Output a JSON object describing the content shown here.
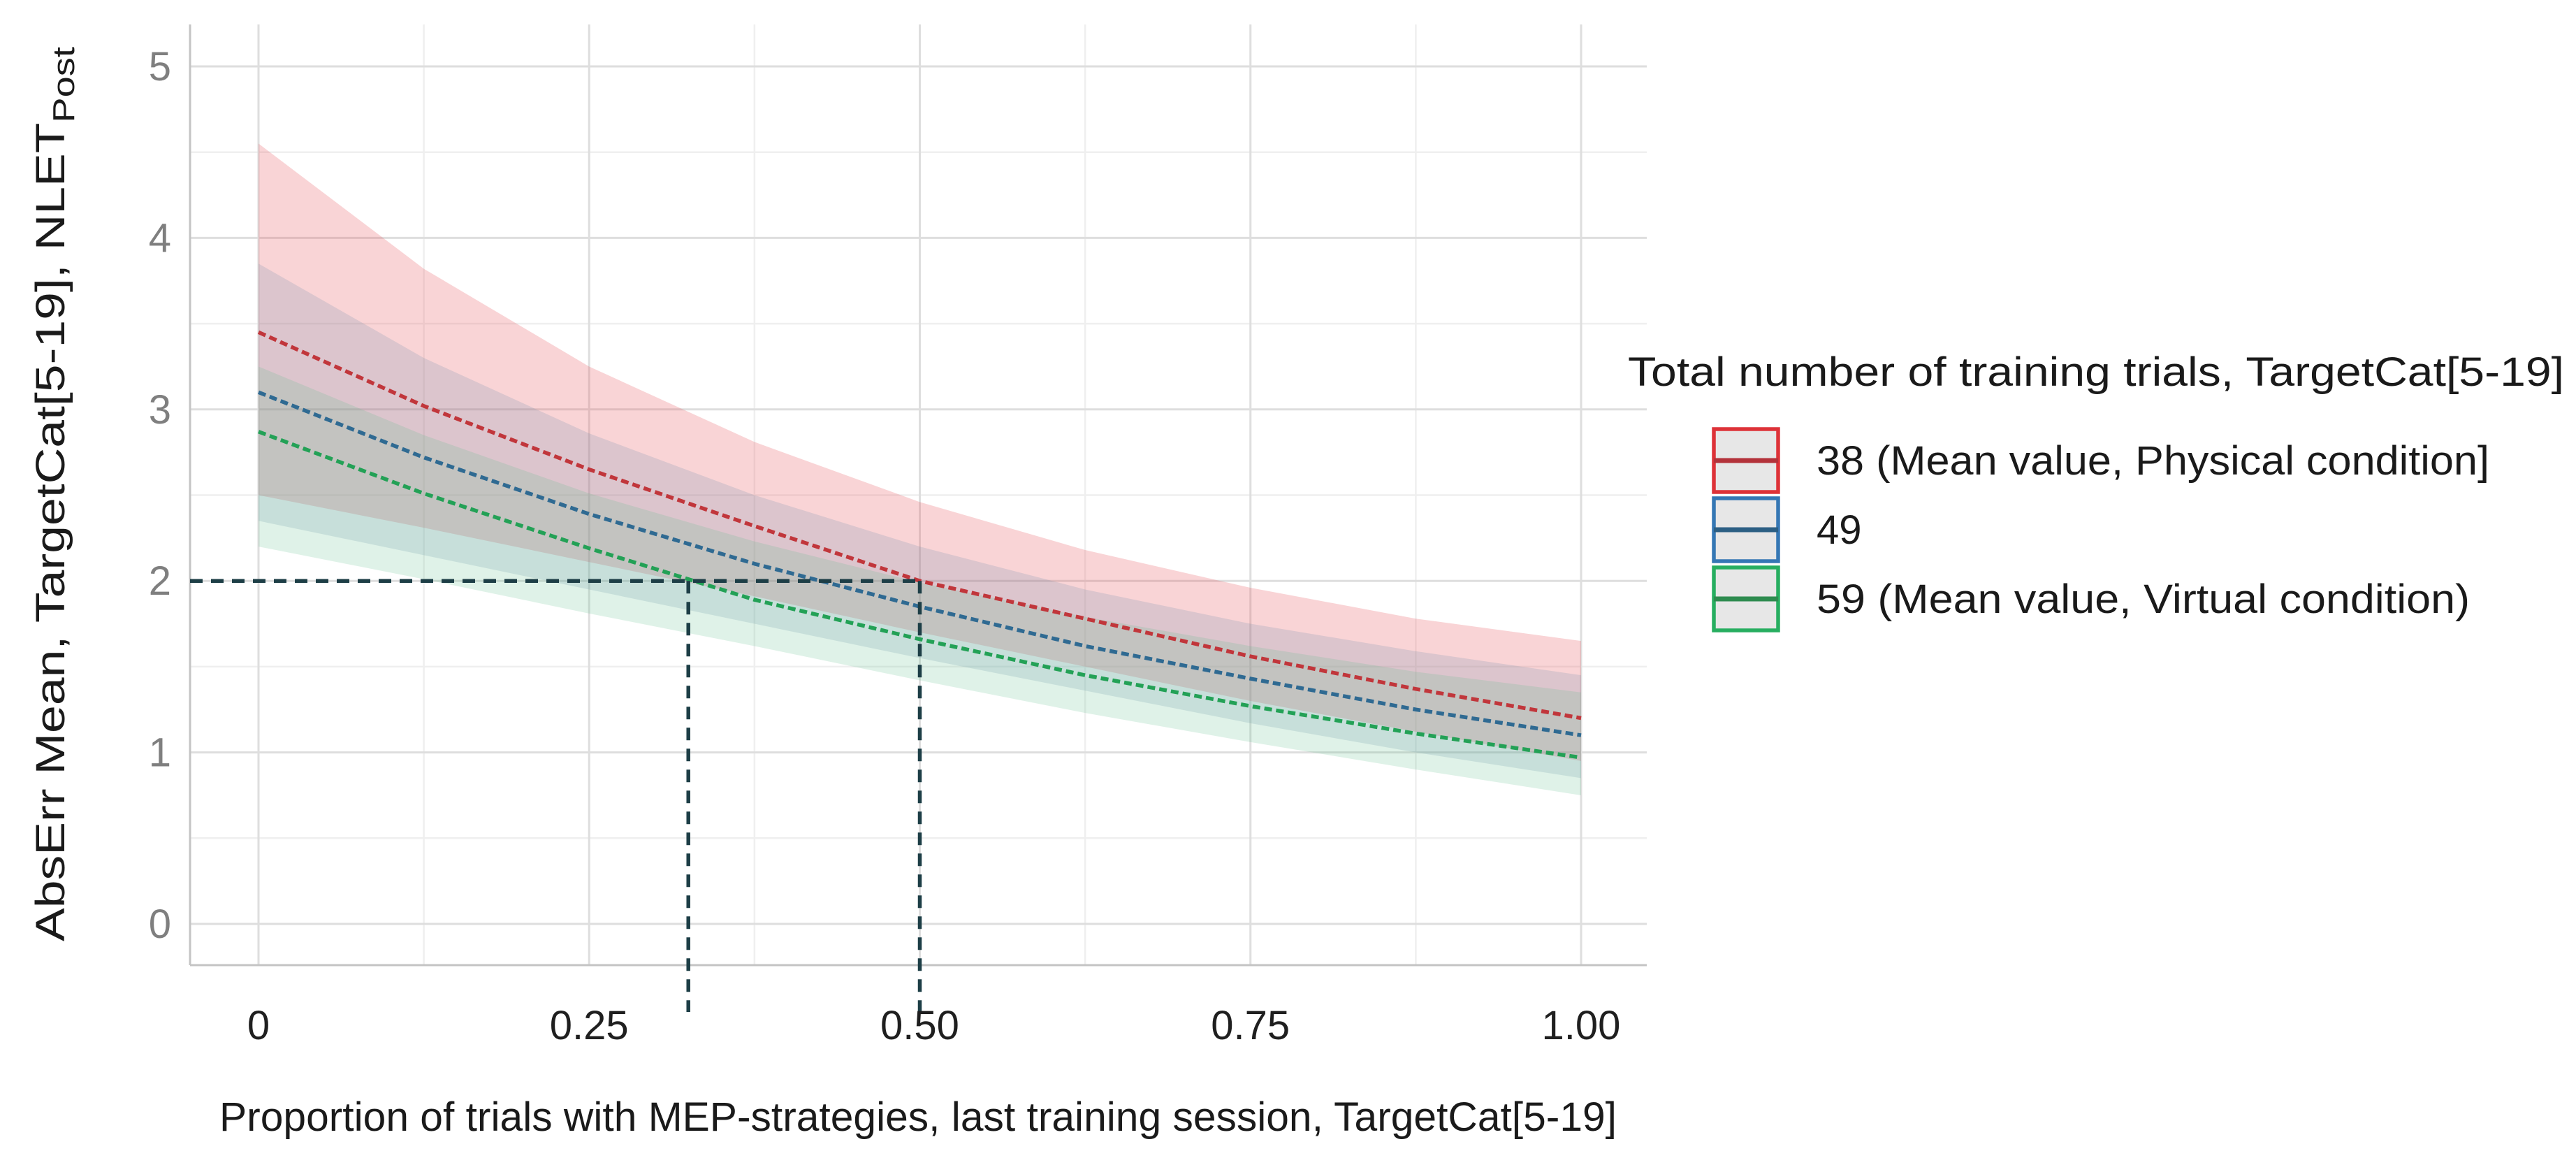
{
  "chart_data": {
    "type": "line",
    "description": "Regression effect plot with confidence ribbons and dashed mean curves",
    "x_axis": {
      "label": "Proportion of trials with MEP-strategies, last training session, TargetCat[5-19]",
      "range": [
        0,
        1
      ],
      "major_ticks": [
        {
          "v": 0,
          "label": "0"
        },
        {
          "v": 0.25,
          "label": "0.25"
        },
        {
          "v": 0.5,
          "label": "0.50"
        },
        {
          "v": 0.75,
          "label": "0.75"
        },
        {
          "v": 1,
          "label": "1.00"
        }
      ],
      "minor_ticks": [
        0.125,
        0.375,
        0.625,
        0.875
      ]
    },
    "y_axis": {
      "label_main": "AbsErr Mean, TargetCat[5-19],  NLET",
      "label_subscript": "Post",
      "range": [
        0,
        5
      ],
      "major_ticks": [
        {
          "v": 0,
          "label": "0"
        },
        {
          "v": 1,
          "label": "1"
        },
        {
          "v": 2,
          "label": "2"
        },
        {
          "v": 3,
          "label": "3"
        },
        {
          "v": 4,
          "label": "4"
        },
        {
          "v": 5,
          "label": "5"
        }
      ],
      "minor_ticks": [
        0.5,
        1.5,
        2.5,
        3.5,
        4.5
      ]
    },
    "legend": {
      "title": "Total number of training trials, TargetCat[5-19]",
      "items": [
        {
          "value": "38",
          "label": "38 (Mean value, Physical condition]"
        },
        {
          "value": "49",
          "label": "49"
        },
        {
          "value": "59",
          "label": "59 (Mean value, Virtual condition)"
        }
      ]
    },
    "series": [
      {
        "name": "38",
        "line_color": "#c1363b",
        "edge_color": "#dd3238",
        "key_line_color": "#b3323a",
        "band_color": "rgba(233, 90, 95, 0.26)",
        "x": [
          0,
          0.125,
          0.25,
          0.375,
          0.5,
          0.625,
          0.75,
          0.875,
          1
        ],
        "y": [
          3.45,
          3.02,
          2.65,
          2.32,
          2.0,
          1.78,
          1.56,
          1.37,
          1.2
        ],
        "hi": [
          4.55,
          3.82,
          3.25,
          2.81,
          2.46,
          2.18,
          1.96,
          1.78,
          1.65
        ],
        "lo": [
          2.5,
          2.31,
          2.11,
          1.91,
          1.7,
          1.5,
          1.3,
          1.12,
          0.95
        ]
      },
      {
        "name": "49",
        "line_color": "#2f6a92",
        "edge_color": "#3577b4",
        "key_line_color": "#2c5f84",
        "band_color": "rgba(105, 140, 170, 0.20)",
        "x": [
          0,
          0.125,
          0.25,
          0.375,
          0.5,
          0.625,
          0.75,
          0.875,
          1
        ],
        "y": [
          3.1,
          2.72,
          2.39,
          2.1,
          1.85,
          1.62,
          1.43,
          1.25,
          1.1
        ],
        "hi": [
          3.85,
          3.3,
          2.86,
          2.5,
          2.2,
          1.95,
          1.75,
          1.59,
          1.45
        ],
        "lo": [
          2.35,
          2.15,
          1.95,
          1.75,
          1.55,
          1.36,
          1.17,
          1.0,
          0.85
        ]
      },
      {
        "name": "59",
        "line_color": "#23a156",
        "edge_color": "#27ae60",
        "key_line_color": "#2e8b4f",
        "band_color": "rgba(95, 190, 140, 0.20)",
        "x": [
          0,
          0.125,
          0.25,
          0.375,
          0.5,
          0.625,
          0.75,
          0.875,
          1
        ],
        "y": [
          2.87,
          2.51,
          2.19,
          1.89,
          1.66,
          1.45,
          1.27,
          1.11,
          0.97
        ],
        "hi": [
          3.25,
          2.85,
          2.51,
          2.23,
          1.99,
          1.79,
          1.62,
          1.47,
          1.35
        ],
        "lo": [
          2.2,
          2.01,
          1.81,
          1.62,
          1.42,
          1.23,
          1.06,
          0.9,
          0.75
        ]
      }
    ],
    "annotations": {
      "hline": {
        "y": 2,
        "x_start_at_panel_edge": true,
        "x_end": 0.5
      },
      "vlines": [
        {
          "x": 0.325,
          "y_top": 2
        },
        {
          "x": 0.5,
          "y_top": 2
        }
      ],
      "color": "#1d3e46"
    },
    "style": {
      "grid_major_color": "#dedede",
      "grid_minor_color": "#efefef",
      "axis_line_color": "#c4c4c4",
      "y_tick_color": "#7f7f7f",
      "x_tick_color": "#1f1f1f",
      "text_color": "#1a1a1a",
      "legend_key_fill": "#e7e7e7",
      "background": "#ffffff"
    }
  }
}
